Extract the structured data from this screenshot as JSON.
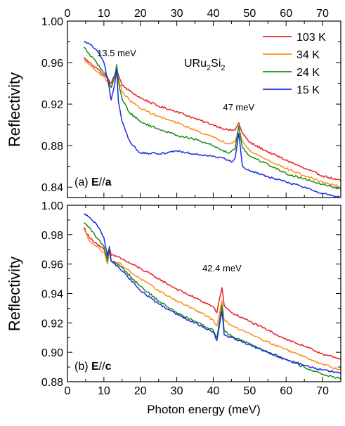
{
  "chart_data": [
    {
      "type": "line",
      "panel": "a",
      "panel_label": {
        "prefix": "(a) ",
        "bold": "E",
        "mid": "//",
        "bold2": "a"
      },
      "compound": {
        "base": "URu",
        "s1": "2",
        "mid": "Si",
        "s2": "2"
      },
      "ylabel": "Reflectivity",
      "xlim": [
        0,
        75
      ],
      "ylim": [
        0.83,
        1.0
      ],
      "yticks": [
        1.0,
        0.96,
        0.92,
        0.88,
        0.84
      ],
      "ytick_labels": [
        "1.00",
        "0.96",
        "0.92",
        "0.88",
        "0.84"
      ],
      "xticks_top": [
        0,
        10,
        20,
        30,
        40,
        50,
        60,
        70
      ],
      "annotations": [
        {
          "text": "13.5 meV",
          "x": 13.5,
          "y": 0.966
        },
        {
          "text": "47 meV",
          "x": 47,
          "y": 0.914
        }
      ],
      "legend": {
        "placement": "top-right"
      },
      "series": [
        {
          "name": "103 K",
          "color": "#e8202a",
          "points": [
            [
              4.5,
              0.965
            ],
            [
              6,
              0.96
            ],
            [
              8,
              0.955
            ],
            [
              10,
              0.948
            ],
            [
              11,
              0.945
            ],
            [
              12,
              0.94
            ],
            [
              13,
              0.948
            ],
            [
              13.5,
              0.955
            ],
            [
              14,
              0.948
            ],
            [
              15,
              0.938
            ],
            [
              17,
              0.933
            ],
            [
              20,
              0.926
            ],
            [
              25,
              0.918
            ],
            [
              30,
              0.913
            ],
            [
              35,
              0.906
            ],
            [
              40,
              0.9
            ],
            [
              44,
              0.895
            ],
            [
              46,
              0.895
            ],
            [
              47,
              0.902
            ],
            [
              48,
              0.892
            ],
            [
              50,
              0.883
            ],
            [
              55,
              0.874
            ],
            [
              60,
              0.866
            ],
            [
              65,
              0.858
            ],
            [
              70,
              0.851
            ],
            [
              75,
              0.846
            ]
          ]
        },
        {
          "name": "34 K",
          "color": "#ff8c1a",
          "points": [
            [
              4.5,
              0.963
            ],
            [
              6,
              0.958
            ],
            [
              8,
              0.952
            ],
            [
              10,
              0.946
            ],
            [
              11,
              0.942
            ],
            [
              12,
              0.936
            ],
            [
              13,
              0.946
            ],
            [
              13.5,
              0.955
            ],
            [
              14,
              0.944
            ],
            [
              15,
              0.932
            ],
            [
              17,
              0.924
            ],
            [
              20,
              0.916
            ],
            [
              25,
              0.908
            ],
            [
              30,
              0.902
            ],
            [
              35,
              0.895
            ],
            [
              40,
              0.888
            ],
            [
              44,
              0.882
            ],
            [
              46,
              0.884
            ],
            [
              47,
              0.898
            ],
            [
              48,
              0.884
            ],
            [
              50,
              0.875
            ],
            [
              55,
              0.866
            ],
            [
              60,
              0.858
            ],
            [
              65,
              0.851
            ],
            [
              70,
              0.845
            ],
            [
              75,
              0.84
            ]
          ]
        },
        {
          "name": "24 K",
          "color": "#1a8a1a",
          "points": [
            [
              4.5,
              0.975
            ],
            [
              6,
              0.968
            ],
            [
              8,
              0.96
            ],
            [
              10,
              0.95
            ],
            [
              11,
              0.946
            ],
            [
              12,
              0.936
            ],
            [
              13,
              0.948
            ],
            [
              13.5,
              0.958
            ],
            [
              14,
              0.942
            ],
            [
              15,
              0.925
            ],
            [
              17,
              0.912
            ],
            [
              20,
              0.903
            ],
            [
              25,
              0.896
            ],
            [
              30,
              0.89
            ],
            [
              35,
              0.886
            ],
            [
              40,
              0.88
            ],
            [
              44,
              0.873
            ],
            [
              46,
              0.877
            ],
            [
              47,
              0.899
            ],
            [
              48,
              0.878
            ],
            [
              50,
              0.87
            ],
            [
              55,
              0.862
            ],
            [
              60,
              0.853
            ],
            [
              65,
              0.848
            ],
            [
              70,
              0.843
            ],
            [
              75,
              0.838
            ]
          ]
        },
        {
          "name": "15 K",
          "color": "#1a2ae0",
          "points": [
            [
              4.5,
              0.98
            ],
            [
              6,
              0.978
            ],
            [
              8,
              0.972
            ],
            [
              10,
              0.96
            ],
            [
              11,
              0.944
            ],
            [
              12,
              0.924
            ],
            [
              13,
              0.94
            ],
            [
              13.5,
              0.954
            ],
            [
              14,
              0.922
            ],
            [
              15,
              0.903
            ],
            [
              17,
              0.885
            ],
            [
              18,
              0.88
            ],
            [
              20,
              0.873
            ],
            [
              25,
              0.872
            ],
            [
              30,
              0.875
            ],
            [
              35,
              0.872
            ],
            [
              40,
              0.87
            ],
            [
              43,
              0.868
            ],
            [
              45,
              0.864
            ],
            [
              46,
              0.868
            ],
            [
              47,
              0.892
            ],
            [
              48,
              0.86
            ],
            [
              50,
              0.856
            ],
            [
              55,
              0.85
            ],
            [
              60,
              0.845
            ],
            [
              65,
              0.84
            ],
            [
              70,
              0.834
            ],
            [
              75,
              0.83
            ]
          ]
        }
      ]
    },
    {
      "type": "line",
      "panel": "b",
      "panel_label": {
        "prefix": "(b) ",
        "bold": "E",
        "mid": "//",
        "bold2": "c"
      },
      "xlabel": "Photon energy (meV)",
      "ylabel": "Reflectivity",
      "xlim": [
        0,
        75
      ],
      "ylim": [
        0.88,
        1.0
      ],
      "yticks": [
        1.0,
        0.98,
        0.96,
        0.94,
        0.92,
        0.9,
        0.88
      ],
      "ytick_labels": [
        "1.00",
        "0.98",
        "0.96",
        "0.94",
        "0.92",
        "0.90",
        "0.88"
      ],
      "xticks": [
        0,
        10,
        20,
        30,
        40,
        50,
        60,
        70
      ],
      "annotations": [
        {
          "text": "42.4 meV",
          "x": 42.4,
          "y": 0.955
        }
      ],
      "series": [
        {
          "name": "103 K",
          "color": "#e8202a",
          "points": [
            [
              4.5,
              0.985
            ],
            [
              6,
              0.978
            ],
            [
              8,
              0.974
            ],
            [
              10,
              0.97
            ],
            [
              11,
              0.964
            ],
            [
              11.5,
              0.972
            ],
            [
              12,
              0.966
            ],
            [
              14,
              0.965
            ],
            [
              16,
              0.962
            ],
            [
              20,
              0.957
            ],
            [
              25,
              0.95
            ],
            [
              30,
              0.943
            ],
            [
              35,
              0.937
            ],
            [
              40,
              0.931
            ],
            [
              41,
              0.927
            ],
            [
              42.4,
              0.944
            ],
            [
              43,
              0.932
            ],
            [
              45,
              0.927
            ],
            [
              50,
              0.921
            ],
            [
              55,
              0.915
            ],
            [
              60,
              0.909
            ],
            [
              65,
              0.904
            ],
            [
              70,
              0.899
            ],
            [
              75,
              0.895
            ]
          ]
        },
        {
          "name": "34 K",
          "color": "#ff8c1a",
          "points": [
            [
              4.5,
              0.984
            ],
            [
              6,
              0.976
            ],
            [
              8,
              0.972
            ],
            [
              10,
              0.968
            ],
            [
              11,
              0.96
            ],
            [
              11.5,
              0.97
            ],
            [
              12,
              0.962
            ],
            [
              14,
              0.961
            ],
            [
              16,
              0.957
            ],
            [
              20,
              0.95
            ],
            [
              25,
              0.942
            ],
            [
              30,
              0.935
            ],
            [
              35,
              0.929
            ],
            [
              40,
              0.922
            ],
            [
              41,
              0.918
            ],
            [
              42.4,
              0.935
            ],
            [
              43,
              0.922
            ],
            [
              45,
              0.918
            ],
            [
              50,
              0.913
            ],
            [
              55,
              0.907
            ],
            [
              60,
              0.902
            ],
            [
              65,
              0.897
            ],
            [
              70,
              0.892
            ],
            [
              75,
              0.888
            ]
          ]
        },
        {
          "name": "24 K",
          "color": "#1a8a1a",
          "points": [
            [
              4.5,
              0.988
            ],
            [
              6,
              0.985
            ],
            [
              8,
              0.978
            ],
            [
              10,
              0.972
            ],
            [
              11,
              0.962
            ],
            [
              11.5,
              0.972
            ],
            [
              12,
              0.962
            ],
            [
              14,
              0.96
            ],
            [
              16,
              0.955
            ],
            [
              20,
              0.945
            ],
            [
              25,
              0.935
            ],
            [
              30,
              0.927
            ],
            [
              35,
              0.921
            ],
            [
              40,
              0.915
            ],
            [
              41,
              0.91
            ],
            [
              42.4,
              0.932
            ],
            [
              43,
              0.915
            ],
            [
              45,
              0.911
            ],
            [
              50,
              0.906
            ],
            [
              55,
              0.9
            ],
            [
              60,
              0.895
            ],
            [
              65,
              0.89
            ],
            [
              70,
              0.885
            ],
            [
              75,
              0.882
            ]
          ]
        },
        {
          "name": "15 K",
          "color": "#1a2ae0",
          "points": [
            [
              4.5,
              0.994
            ],
            [
              6,
              0.992
            ],
            [
              8,
              0.987
            ],
            [
              10,
              0.978
            ],
            [
              11,
              0.966
            ],
            [
              11.5,
              0.97
            ],
            [
              12,
              0.962
            ],
            [
              14,
              0.958
            ],
            [
              16,
              0.953
            ],
            [
              20,
              0.942
            ],
            [
              25,
              0.933
            ],
            [
              30,
              0.926
            ],
            [
              35,
              0.92
            ],
            [
              40,
              0.914
            ],
            [
              41,
              0.908
            ],
            [
              42.4,
              0.928
            ],
            [
              43,
              0.912
            ],
            [
              45,
              0.91
            ],
            [
              50,
              0.905
            ],
            [
              55,
              0.9
            ],
            [
              60,
              0.895
            ],
            [
              65,
              0.891
            ],
            [
              70,
              0.888
            ],
            [
              75,
              0.886
            ]
          ]
        }
      ]
    }
  ]
}
